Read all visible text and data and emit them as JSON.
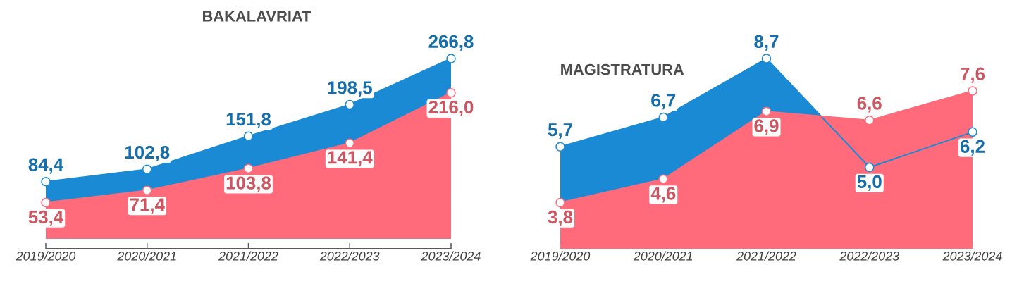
{
  "chart_data": [
    {
      "type": "area",
      "title": "BAKALAVRIAT",
      "categories": [
        "2019/2020",
        "2020/2021",
        "2021/2022",
        "2022/2023",
        "2023/2024"
      ],
      "marker": "circle",
      "series": [
        {
          "color": "#1a8ad4",
          "values": [
            84.4,
            102.8,
            151.8,
            198.5,
            266.8
          ],
          "value_labels": [
            "84,4",
            "102,8",
            "151,8",
            "198,5",
            "266,8"
          ]
        },
        {
          "color": "#ff6b7a",
          "values": [
            53.4,
            71.4,
            103.8,
            141.4,
            216.0
          ],
          "value_labels": [
            "53,4",
            "71,4",
            "103,8",
            "141,4",
            "216,0"
          ]
        }
      ]
    },
    {
      "type": "area",
      "title": "MAGISTRATURA",
      "categories": [
        "2019/2020",
        "2020/2021",
        "2021/2022",
        "2022/2023",
        "2023/2024"
      ],
      "marker": "circle",
      "series": [
        {
          "color": "#1a8ad4",
          "values": [
            5.7,
            6.7,
            8.7,
            5.0,
            6.2
          ],
          "value_labels": [
            "5,7",
            "6,7",
            "8,7",
            "5,0",
            "6,2"
          ]
        },
        {
          "color": "#ff6b7a",
          "values": [
            3.8,
            4.6,
            6.9,
            6.6,
            7.6
          ],
          "value_labels": [
            "3,8",
            "4,6",
            "6,9",
            "6,6",
            "7,6"
          ]
        }
      ]
    }
  ]
}
